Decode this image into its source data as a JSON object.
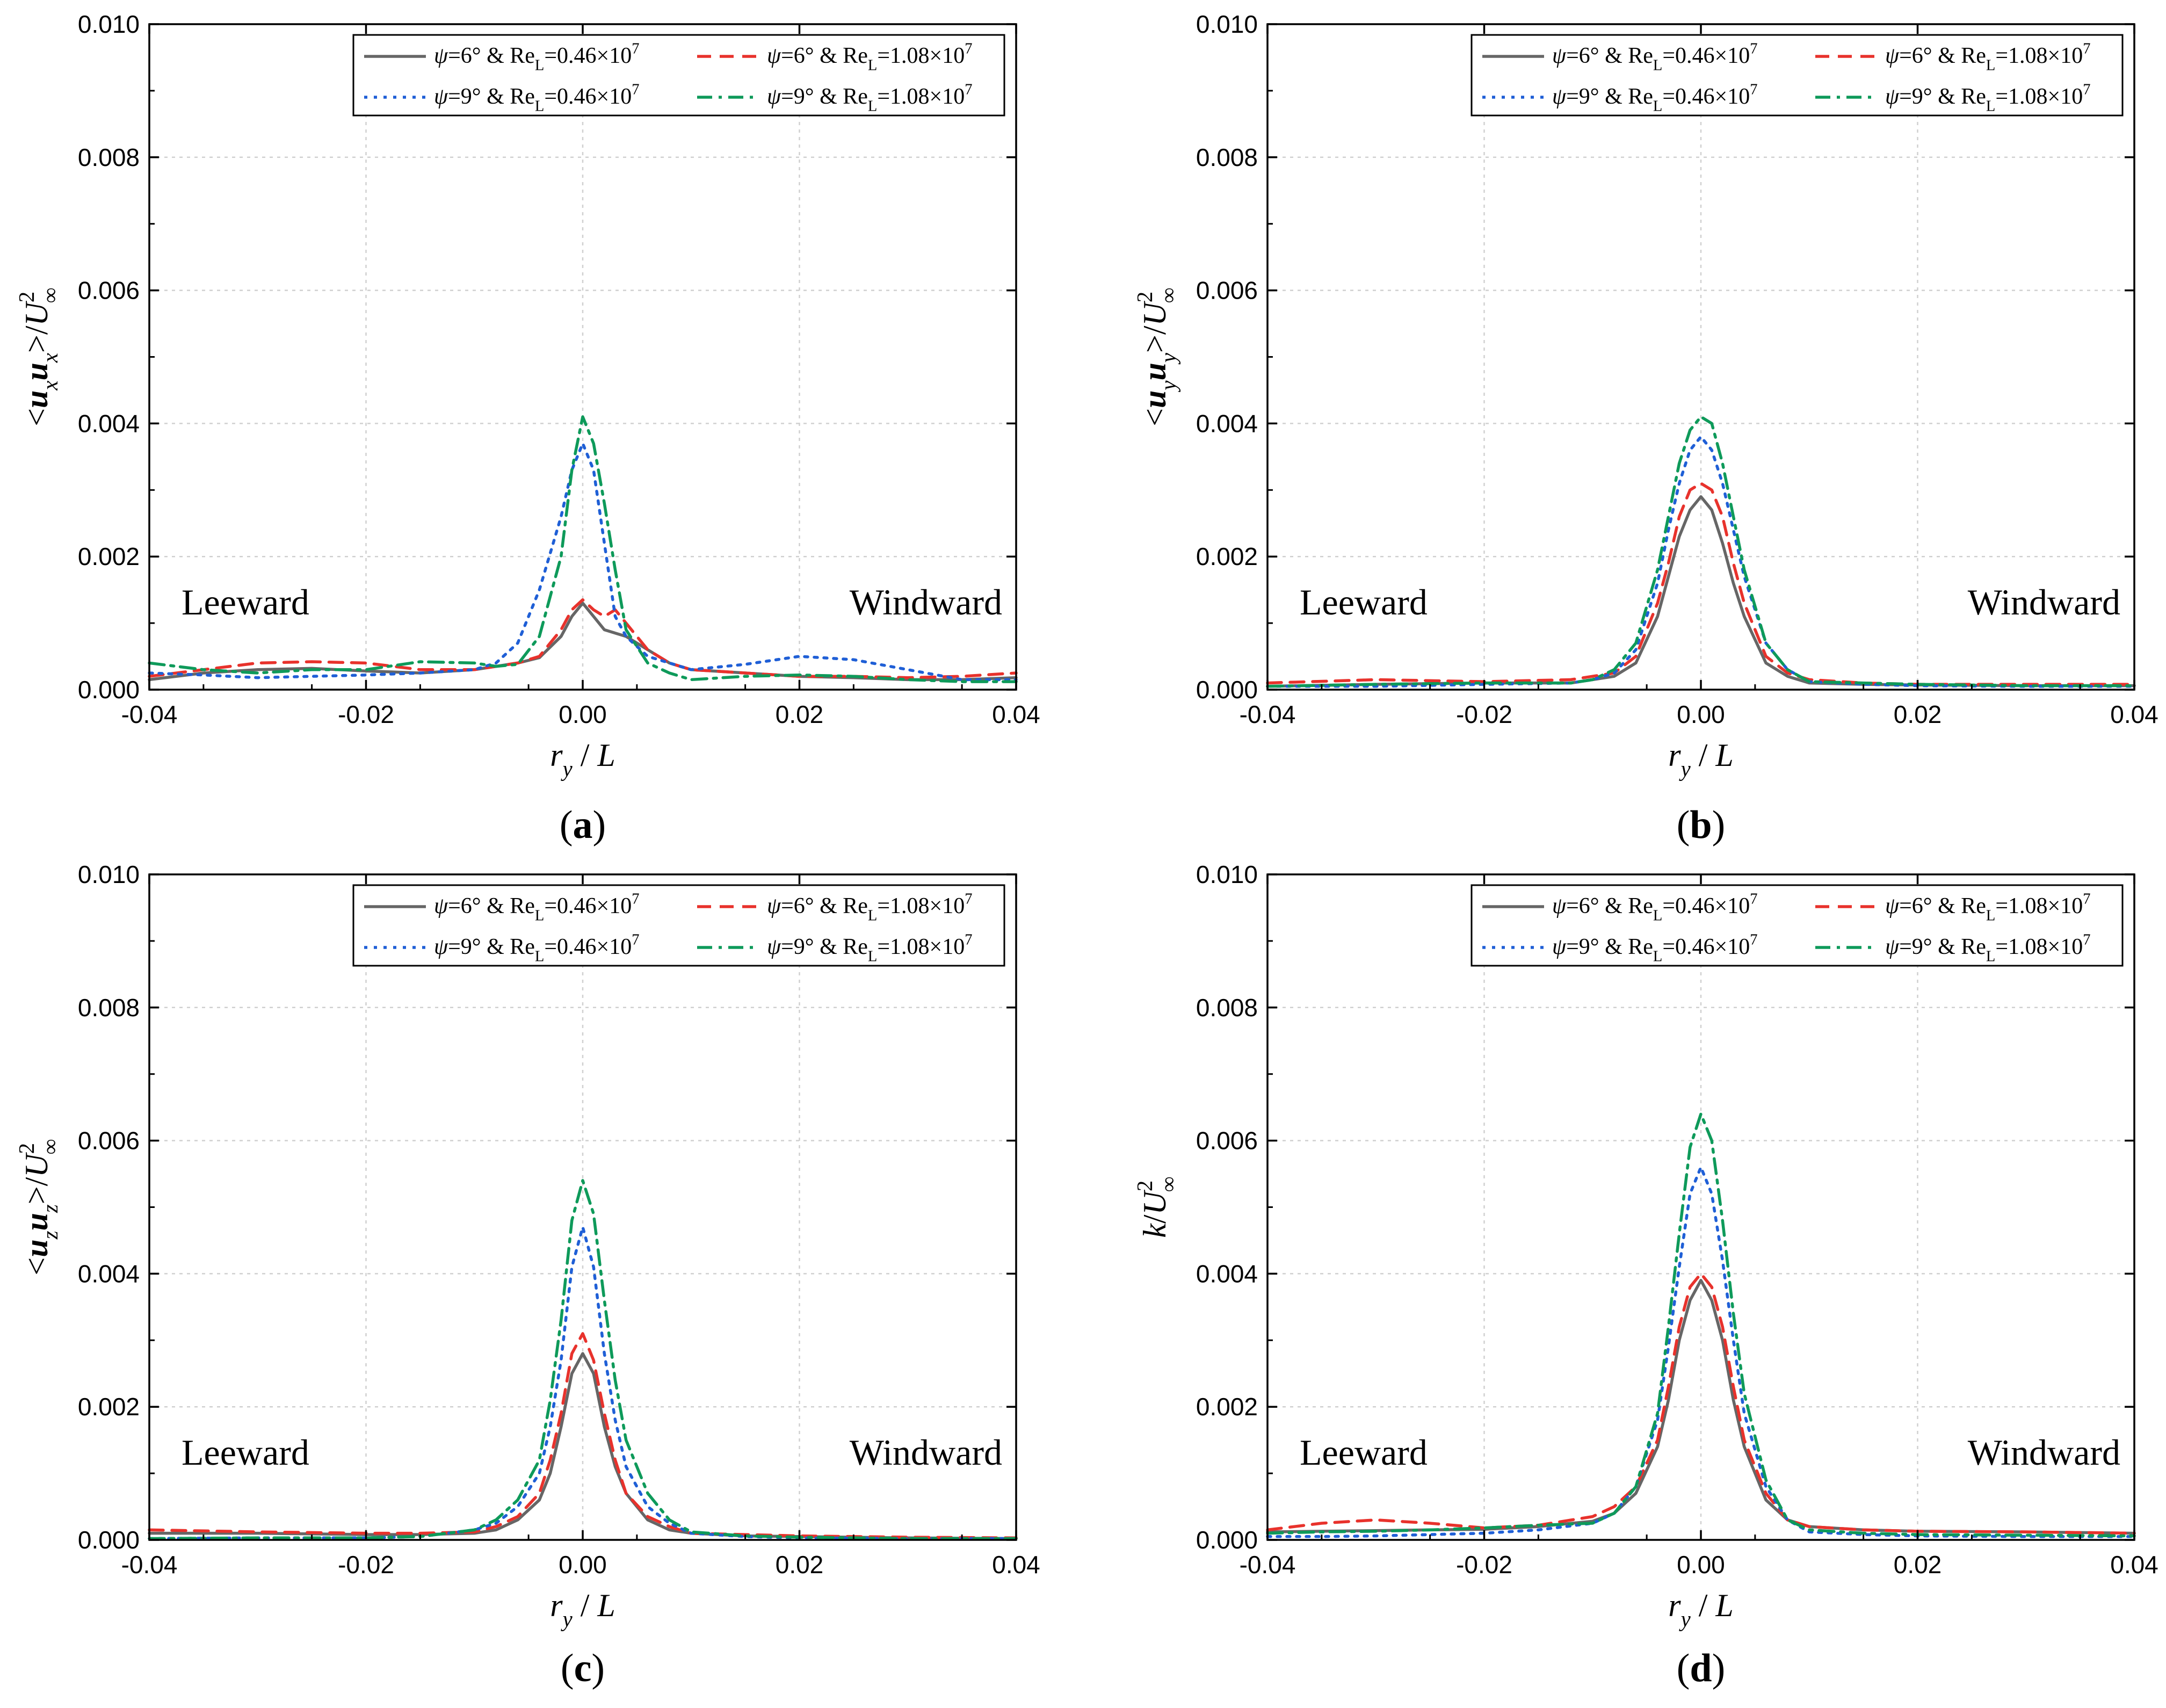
{
  "figure": {
    "legend_items": [
      {
        "key": "s1",
        "color": "#666666",
        "dash": "solid",
        "parts": [
          [
            "ψ",
            "i"
          ],
          [
            "=6° & Re",
            ""
          ],
          [
            "L",
            "s"
          ],
          [
            "=0.46×10",
            ""
          ],
          [
            "7",
            "p"
          ]
        ]
      },
      {
        "key": "s2",
        "color": "#e8322c",
        "dash": "dash",
        "parts": [
          [
            "ψ",
            "i"
          ],
          [
            "=6° & Re",
            ""
          ],
          [
            "L",
            "s"
          ],
          [
            "=1.08×10",
            ""
          ],
          [
            "7",
            "p"
          ]
        ]
      },
      {
        "key": "s3",
        "color": "#1f5fd6",
        "dash": "dot",
        "parts": [
          [
            "ψ",
            "i"
          ],
          [
            "=9° & Re",
            ""
          ],
          [
            "L",
            "s"
          ],
          [
            "=0.46×10",
            ""
          ],
          [
            "7",
            "p"
          ]
        ]
      },
      {
        "key": "s4",
        "color": "#0e9a5a",
        "dash": "dashdot",
        "parts": [
          [
            "ψ",
            "i"
          ],
          [
            "=9° & Re",
            ""
          ],
          [
            "L",
            "s"
          ],
          [
            "=1.08×10",
            ""
          ],
          [
            "7",
            "p"
          ]
        ]
      }
    ],
    "left_label": "Leeward",
    "right_label": "Windward"
  },
  "chart_data": [
    {
      "type": "line",
      "panel": "a",
      "caption": "(a)",
      "ylabel_parts": [
        [
          "<",
          ""
        ],
        [
          "u",
          "bi"
        ],
        [
          "x",
          "si"
        ],
        [
          "u",
          "bi"
        ],
        [
          "x",
          "si"
        ],
        [
          ">/",
          ""
        ],
        [
          "U",
          "i"
        ],
        [
          "2",
          "p"
        ],
        [
          "∞",
          "s"
        ]
      ],
      "xlabel_parts": [
        [
          "r",
          "i"
        ],
        [
          "y",
          "si"
        ],
        [
          " / ",
          ""
        ],
        [
          "L",
          "i"
        ]
      ],
      "xlim": [
        -0.04,
        0.04
      ],
      "ylim": [
        0,
        0.01
      ],
      "xticks": [
        "-0.04",
        "-0.02",
        "0.00",
        "0.02",
        "0.04"
      ],
      "yticks": [
        "0.000",
        "0.002",
        "0.004",
        "0.006",
        "0.008",
        "0.010"
      ],
      "x": [
        -0.04,
        -0.035,
        -0.03,
        -0.025,
        -0.02,
        -0.015,
        -0.01,
        -0.008,
        -0.006,
        -0.004,
        -0.002,
        -0.001,
        0,
        0.001,
        0.002,
        0.003,
        0.004,
        0.006,
        0.008,
        0.01,
        0.015,
        0.02,
        0.025,
        0.03,
        0.035,
        0.04
      ],
      "series": [
        {
          "key": "s1",
          "values": [
            0.00015,
            0.00025,
            0.0003,
            0.00032,
            0.00028,
            0.00025,
            0.0003,
            0.00035,
            0.0004,
            0.00048,
            0.0008,
            0.0011,
            0.0013,
            0.0011,
            0.0009,
            0.00085,
            0.0008,
            0.0006,
            0.0004,
            0.0003,
            0.00025,
            0.0002,
            0.00018,
            0.00015,
            0.00015,
            0.00018
          ]
        },
        {
          "key": "s2",
          "values": [
            0.0002,
            0.0003,
            0.0004,
            0.00042,
            0.0004,
            0.0003,
            0.0003,
            0.00035,
            0.0004,
            0.0005,
            0.0009,
            0.0012,
            0.00135,
            0.0012,
            0.0011,
            0.0012,
            0.001,
            0.0006,
            0.0004,
            0.0003,
            0.00025,
            0.0002,
            0.0002,
            0.00018,
            0.0002,
            0.00025
          ]
        },
        {
          "key": "s3",
          "values": [
            0.00025,
            0.00022,
            0.00018,
            0.0002,
            0.00022,
            0.00025,
            0.0003,
            0.0004,
            0.0007,
            0.0015,
            0.0026,
            0.0033,
            0.0037,
            0.0033,
            0.0022,
            0.0011,
            0.0008,
            0.0005,
            0.0004,
            0.0003,
            0.00038,
            0.0005,
            0.00045,
            0.0003,
            0.00015,
            0.00015
          ]
        },
        {
          "key": "s4",
          "values": [
            0.0004,
            0.0003,
            0.00025,
            0.0003,
            0.0003,
            0.00042,
            0.0004,
            0.00035,
            0.00038,
            0.0008,
            0.002,
            0.0033,
            0.0041,
            0.0037,
            0.0028,
            0.0018,
            0.0009,
            0.0004,
            0.00025,
            0.00015,
            0.0002,
            0.00022,
            0.0002,
            0.00015,
            0.00012,
            0.00012
          ]
        }
      ]
    },
    {
      "type": "line",
      "panel": "b",
      "caption": "(b)",
      "ylabel_parts": [
        [
          "<",
          ""
        ],
        [
          "u",
          "bi"
        ],
        [
          "y",
          "si"
        ],
        [
          "u",
          "bi"
        ],
        [
          "y",
          "si"
        ],
        [
          ">/",
          ""
        ],
        [
          "U",
          "i"
        ],
        [
          "2",
          "p"
        ],
        [
          "∞",
          "s"
        ]
      ],
      "xlabel_parts": [
        [
          "r",
          "i"
        ],
        [
          "y",
          "si"
        ],
        [
          " / ",
          ""
        ],
        [
          "L",
          "i"
        ]
      ],
      "xlim": [
        -0.04,
        0.04
      ],
      "ylim": [
        0,
        0.01
      ],
      "xticks": [
        "-0.04",
        "-0.02",
        "0.00",
        "0.02",
        "0.04"
      ],
      "yticks": [
        "0.000",
        "0.002",
        "0.004",
        "0.006",
        "0.008",
        "0.010"
      ],
      "x": [
        -0.04,
        -0.03,
        -0.02,
        -0.012,
        -0.01,
        -0.008,
        -0.006,
        -0.004,
        -0.003,
        -0.002,
        -0.001,
        0,
        0.001,
        0.002,
        0.003,
        0.004,
        0.006,
        0.008,
        0.01,
        0.015,
        0.02,
        0.03,
        0.04
      ],
      "series": [
        {
          "key": "s1",
          "values": [
            5e-05,
            8e-05,
            0.0001,
            0.0001,
            0.00015,
            0.0002,
            0.0004,
            0.0011,
            0.0017,
            0.0023,
            0.0027,
            0.0029,
            0.0027,
            0.0022,
            0.0016,
            0.0011,
            0.0004,
            0.0002,
            0.0001,
            8e-05,
            7e-05,
            6e-05,
            6e-05
          ]
        },
        {
          "key": "s2",
          "values": [
            0.0001,
            0.00015,
            0.00012,
            0.00015,
            0.0002,
            0.00025,
            0.0005,
            0.0013,
            0.0019,
            0.0026,
            0.003,
            0.0031,
            0.003,
            0.0026,
            0.0019,
            0.0013,
            0.0005,
            0.00025,
            0.00015,
            0.0001,
            8e-05,
            8e-05,
            8e-05
          ]
        },
        {
          "key": "s3",
          "values": [
            5e-05,
            5e-05,
            8e-05,
            0.0001,
            0.00015,
            0.00025,
            0.0006,
            0.0016,
            0.0024,
            0.0031,
            0.0036,
            0.0038,
            0.0036,
            0.0031,
            0.0024,
            0.0017,
            0.0007,
            0.0003,
            0.00012,
            8e-05,
            6e-05,
            5e-05,
            5e-05
          ]
        },
        {
          "key": "s4",
          "values": [
            5e-05,
            8e-05,
            0.0001,
            0.0001,
            0.00015,
            0.0003,
            0.0007,
            0.0018,
            0.0026,
            0.0034,
            0.0039,
            0.0041,
            0.004,
            0.0034,
            0.0026,
            0.0018,
            0.0007,
            0.0003,
            0.00012,
            0.0001,
            8e-05,
            6e-05,
            6e-05
          ]
        }
      ]
    },
    {
      "type": "line",
      "panel": "c",
      "caption": "(c)",
      "ylabel_parts": [
        [
          "<",
          ""
        ],
        [
          "u",
          "bi"
        ],
        [
          "z",
          "si"
        ],
        [
          "u",
          "bi"
        ],
        [
          "z",
          "si"
        ],
        [
          ">/",
          ""
        ],
        [
          "U",
          "i"
        ],
        [
          "2",
          "p"
        ],
        [
          "∞",
          "s"
        ]
      ],
      "xlabel_parts": [
        [
          "r",
          "i"
        ],
        [
          "y",
          "si"
        ],
        [
          " / ",
          ""
        ],
        [
          "L",
          "i"
        ]
      ],
      "xlim": [
        -0.04,
        0.04
      ],
      "ylim": [
        0,
        0.01
      ],
      "xticks": [
        "-0.04",
        "-0.02",
        "0.00",
        "0.02",
        "0.04"
      ],
      "yticks": [
        "0.000",
        "0.002",
        "0.004",
        "0.006",
        "0.008",
        "0.010"
      ],
      "x": [
        -0.04,
        -0.03,
        -0.02,
        -0.015,
        -0.01,
        -0.008,
        -0.006,
        -0.004,
        -0.003,
        -0.002,
        -0.001,
        0,
        0.001,
        0.002,
        0.003,
        0.004,
        0.006,
        0.008,
        0.01,
        0.015,
        0.02,
        0.03,
        0.04
      ],
      "series": [
        {
          "key": "s1",
          "values": [
            0.0001,
            0.0001,
            8e-05,
            8e-05,
            0.0001,
            0.00015,
            0.0003,
            0.0006,
            0.001,
            0.0017,
            0.0025,
            0.0028,
            0.0025,
            0.0017,
            0.0011,
            0.0007,
            0.0003,
            0.00015,
            0.0001,
            6e-05,
            5e-05,
            3e-05,
            2e-05
          ]
        },
        {
          "key": "s2",
          "values": [
            0.00015,
            0.00012,
            0.0001,
            0.0001,
            0.00012,
            0.0002,
            0.00035,
            0.0007,
            0.0012,
            0.0019,
            0.0028,
            0.0031,
            0.0027,
            0.0019,
            0.0012,
            0.0007,
            0.00035,
            0.0002,
            0.0001,
            8e-05,
            6e-05,
            4e-05,
            3e-05
          ]
        },
        {
          "key": "s3",
          "values": [
            2e-05,
            3e-05,
            3e-05,
            5e-05,
            0.00015,
            0.00025,
            0.0005,
            0.001,
            0.0017,
            0.0027,
            0.0041,
            0.0047,
            0.0041,
            0.0028,
            0.0018,
            0.0011,
            0.0005,
            0.00025,
            0.0001,
            5e-05,
            3e-05,
            2e-05,
            2e-05
          ]
        },
        {
          "key": "s4",
          "values": [
            2e-05,
            3e-05,
            3e-05,
            5e-05,
            0.00015,
            0.0003,
            0.0006,
            0.0012,
            0.0021,
            0.0033,
            0.0048,
            0.0054,
            0.0049,
            0.0036,
            0.0024,
            0.0015,
            0.0007,
            0.0003,
            0.00012,
            6e-05,
            4e-05,
            2e-05,
            2e-05
          ]
        }
      ]
    },
    {
      "type": "line",
      "panel": "d",
      "caption": "(d)",
      "ylabel_parts": [
        [
          "k",
          "i"
        ],
        [
          "/",
          ""
        ],
        [
          "U",
          "i"
        ],
        [
          "2",
          "p"
        ],
        [
          "∞",
          "s"
        ]
      ],
      "xlabel_parts": [
        [
          "r",
          "i"
        ],
        [
          "y",
          "si"
        ],
        [
          " / ",
          ""
        ],
        [
          "L",
          "i"
        ]
      ],
      "xlim": [
        -0.04,
        0.04
      ],
      "ylim": [
        0,
        0.01
      ],
      "xticks": [
        "-0.04",
        "-0.02",
        "0.00",
        "0.02",
        "0.04"
      ],
      "yticks": [
        "0.000",
        "0.002",
        "0.004",
        "0.006",
        "0.008",
        "0.010"
      ],
      "x": [
        -0.04,
        -0.035,
        -0.03,
        -0.025,
        -0.02,
        -0.015,
        -0.01,
        -0.008,
        -0.006,
        -0.004,
        -0.003,
        -0.002,
        -0.001,
        0,
        0.001,
        0.002,
        0.003,
        0.004,
        0.006,
        0.008,
        0.01,
        0.015,
        0.02,
        0.03,
        0.04
      ],
      "series": [
        {
          "key": "s1",
          "values": [
            0.00012,
            0.00013,
            0.00014,
            0.00015,
            0.00016,
            0.0002,
            0.00028,
            0.0004,
            0.0007,
            0.0014,
            0.0021,
            0.003,
            0.0036,
            0.0039,
            0.0036,
            0.003,
            0.0021,
            0.0014,
            0.0006,
            0.0003,
            0.0002,
            0.00015,
            0.00013,
            0.00012,
            0.0001
          ]
        },
        {
          "key": "s2",
          "values": [
            0.00015,
            0.00025,
            0.0003,
            0.00025,
            0.00018,
            0.00022,
            0.00035,
            0.0005,
            0.0008,
            0.0015,
            0.0023,
            0.0032,
            0.0038,
            0.004,
            0.0038,
            0.0032,
            0.0023,
            0.0015,
            0.0007,
            0.0003,
            0.0002,
            0.00015,
            0.00013,
            0.00012,
            0.0001
          ]
        },
        {
          "key": "s3",
          "values": [
            5e-05,
            5e-05,
            6e-05,
            8e-05,
            0.0001,
            0.00015,
            0.00025,
            0.0004,
            0.0008,
            0.0018,
            0.0029,
            0.0041,
            0.0052,
            0.0056,
            0.0052,
            0.0042,
            0.003,
            0.0019,
            0.0008,
            0.0003,
            0.00012,
            8e-05,
            6e-05,
            5e-05,
            5e-05
          ]
        },
        {
          "key": "s4",
          "values": [
            0.0001,
            0.00012,
            0.00013,
            0.00015,
            0.00018,
            0.00022,
            0.00025,
            0.0004,
            0.0008,
            0.0019,
            0.0032,
            0.0046,
            0.0059,
            0.0064,
            0.006,
            0.0048,
            0.0034,
            0.0022,
            0.0009,
            0.0003,
            0.00015,
            0.0001,
            8e-05,
            7e-05,
            6e-05
          ]
        }
      ]
    }
  ]
}
